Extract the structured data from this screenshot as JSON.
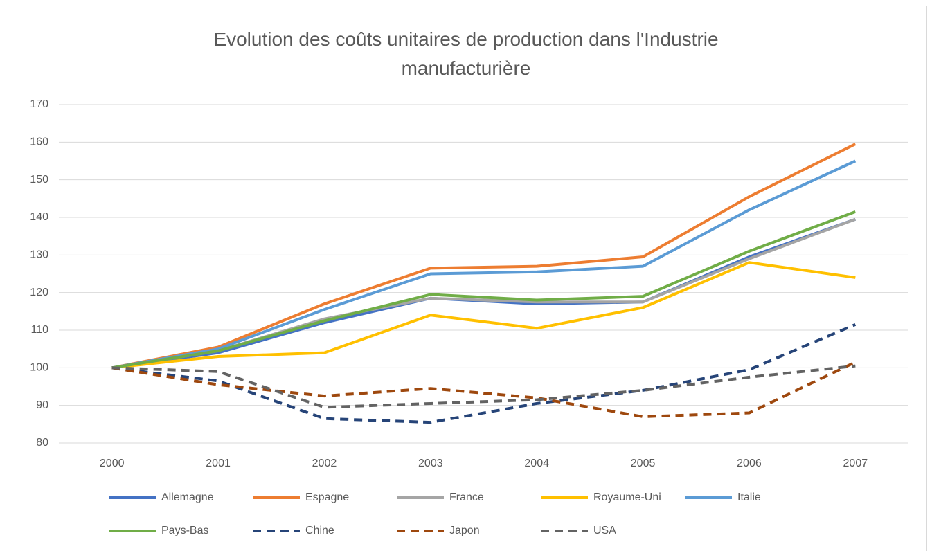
{
  "chart_data": {
    "type": "line",
    "title": "Evolution des coûts unitaires de production dans l'Industrie manufacturière",
    "categories": [
      "2000",
      "2001",
      "2002",
      "2003",
      "2004",
      "2005",
      "2006",
      "2007"
    ],
    "series": [
      {
        "name": "Allemagne",
        "color": "#4472c4",
        "dashed": false,
        "values": [
          100,
          104,
          112,
          118.5,
          117,
          117.5,
          129.5,
          139.5
        ]
      },
      {
        "name": "Espagne",
        "color": "#ed7d31",
        "dashed": false,
        "values": [
          100,
          105.5,
          117,
          126.5,
          127,
          129.5,
          145.5,
          159.5
        ]
      },
      {
        "name": "France",
        "color": "#a5a5a5",
        "dashed": false,
        "values": [
          100,
          104.5,
          113,
          118.5,
          117.5,
          117.5,
          129,
          139.5
        ]
      },
      {
        "name": "Royaume-Uni",
        "color": "#ffc000",
        "dashed": false,
        "values": [
          100,
          103,
          104,
          114,
          110.5,
          116,
          128,
          124
        ]
      },
      {
        "name": "Italie",
        "color": "#5b9bd5",
        "dashed": false,
        "values": [
          100,
          105,
          115.5,
          125,
          125.5,
          127,
          142,
          155
        ]
      },
      {
        "name": "Pays-Bas",
        "color": "#70ad47",
        "dashed": false,
        "values": [
          100,
          104.5,
          112.5,
          119.5,
          118,
          119,
          131,
          141.5
        ]
      },
      {
        "name": "Chine",
        "color": "#264478",
        "dashed": true,
        "values": [
          100,
          96.5,
          86.5,
          85.5,
          90.5,
          94,
          99.5,
          111.5
        ]
      },
      {
        "name": "Japon",
        "color": "#9e480e",
        "dashed": true,
        "values": [
          100,
          95.5,
          92.5,
          94.5,
          92,
          87,
          88,
          101.5
        ]
      },
      {
        "name": "USA",
        "color": "#636363",
        "dashed": true,
        "values": [
          100,
          99,
          89.5,
          90.5,
          91.5,
          94,
          97.5,
          100.5
        ]
      }
    ],
    "ylim": [
      80,
      170
    ],
    "yticks": [
      80,
      90,
      100,
      110,
      120,
      130,
      140,
      150,
      160,
      170
    ],
    "grid": true,
    "legend": "bottom"
  }
}
